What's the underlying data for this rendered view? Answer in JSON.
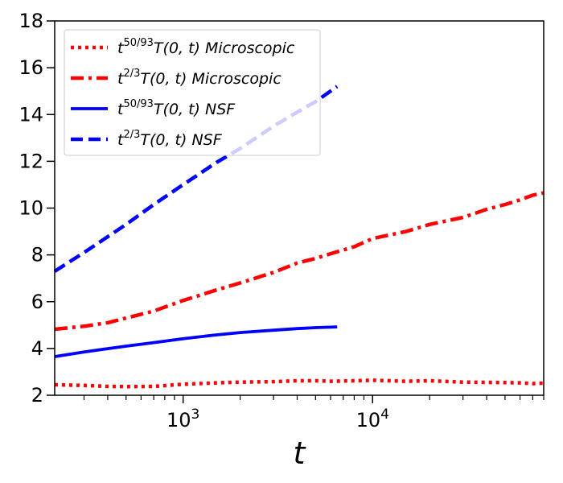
{
  "chart_data": {
    "type": "line",
    "xscale": "log",
    "xlim": [
      210,
      80000
    ],
    "ylim": [
      2,
      18
    ],
    "xlabel": "t",
    "ylabel": "",
    "yticks": [
      2,
      4,
      6,
      8,
      10,
      12,
      14,
      16,
      18
    ],
    "xticks_major": [
      1000,
      10000
    ],
    "xtick_labels": {
      "base": "10",
      "exponents": [
        "3",
        "4"
      ]
    },
    "legend_position": "top-left",
    "series": [
      {
        "name": "t^{50/93}T(0,t) Microscopic",
        "legend": {
          "prefix": "t",
          "sup": "50/93",
          "rest": "T(0, t) Microscopic"
        },
        "color": "#ff0000",
        "style": "dotted",
        "x": [
          210,
          300,
          400,
          500,
          700,
          1000,
          1500,
          2000,
          3000,
          4000,
          5000,
          6000,
          8000,
          10000,
          15000,
          20000,
          30000,
          40000,
          50000,
          60000,
          70000,
          80000
        ],
        "y": [
          2.45,
          2.42,
          2.38,
          2.37,
          2.38,
          2.47,
          2.53,
          2.56,
          2.58,
          2.62,
          2.62,
          2.6,
          2.62,
          2.64,
          2.6,
          2.62,
          2.56,
          2.55,
          2.54,
          2.53,
          2.5,
          2.52
        ]
      },
      {
        "name": "t^{2/3}T(0,t) Microscopic",
        "legend": {
          "prefix": "t",
          "sup": "2/3",
          "rest": "T(0, t) Microscopic"
        },
        "color": "#ff0000",
        "style": "dashdot",
        "x": [
          210,
          300,
          400,
          500,
          700,
          1000,
          1500,
          2000,
          3000,
          4000,
          5000,
          6000,
          8000,
          10000,
          15000,
          20000,
          30000,
          40000,
          50000,
          60000,
          70000,
          80000
        ],
        "y": [
          4.82,
          4.95,
          5.1,
          5.3,
          5.6,
          6.05,
          6.5,
          6.8,
          7.25,
          7.65,
          7.85,
          8.05,
          8.35,
          8.7,
          9.0,
          9.3,
          9.6,
          9.95,
          10.15,
          10.35,
          10.55,
          10.65
        ]
      },
      {
        "name": "t^{50/93}T(0,t) NSF",
        "legend": {
          "prefix": "t",
          "sup": "50/93",
          "rest": "T(0, t) NSF"
        },
        "color": "#0000ff",
        "style": "solid",
        "x": [
          210,
          300,
          500,
          700,
          1000,
          1500,
          2000,
          3000,
          4000,
          5000,
          6500
        ],
        "y": [
          3.65,
          3.85,
          4.1,
          4.25,
          4.42,
          4.58,
          4.68,
          4.78,
          4.85,
          4.89,
          4.92
        ]
      },
      {
        "name": "t^{2/3}T(0,t) NSF",
        "legend": {
          "prefix": "t",
          "sup": "2/3",
          "rest": "T(0, t) NSF"
        },
        "color": "#0000ff",
        "style": "dashed",
        "x": [
          210,
          300,
          500,
          700,
          1000,
          1500,
          2000,
          3000,
          4000,
          5000,
          6500
        ],
        "y": [
          7.3,
          8.1,
          9.3,
          10.15,
          11.0,
          11.95,
          12.55,
          13.5,
          14.1,
          14.55,
          15.2
        ]
      }
    ]
  }
}
